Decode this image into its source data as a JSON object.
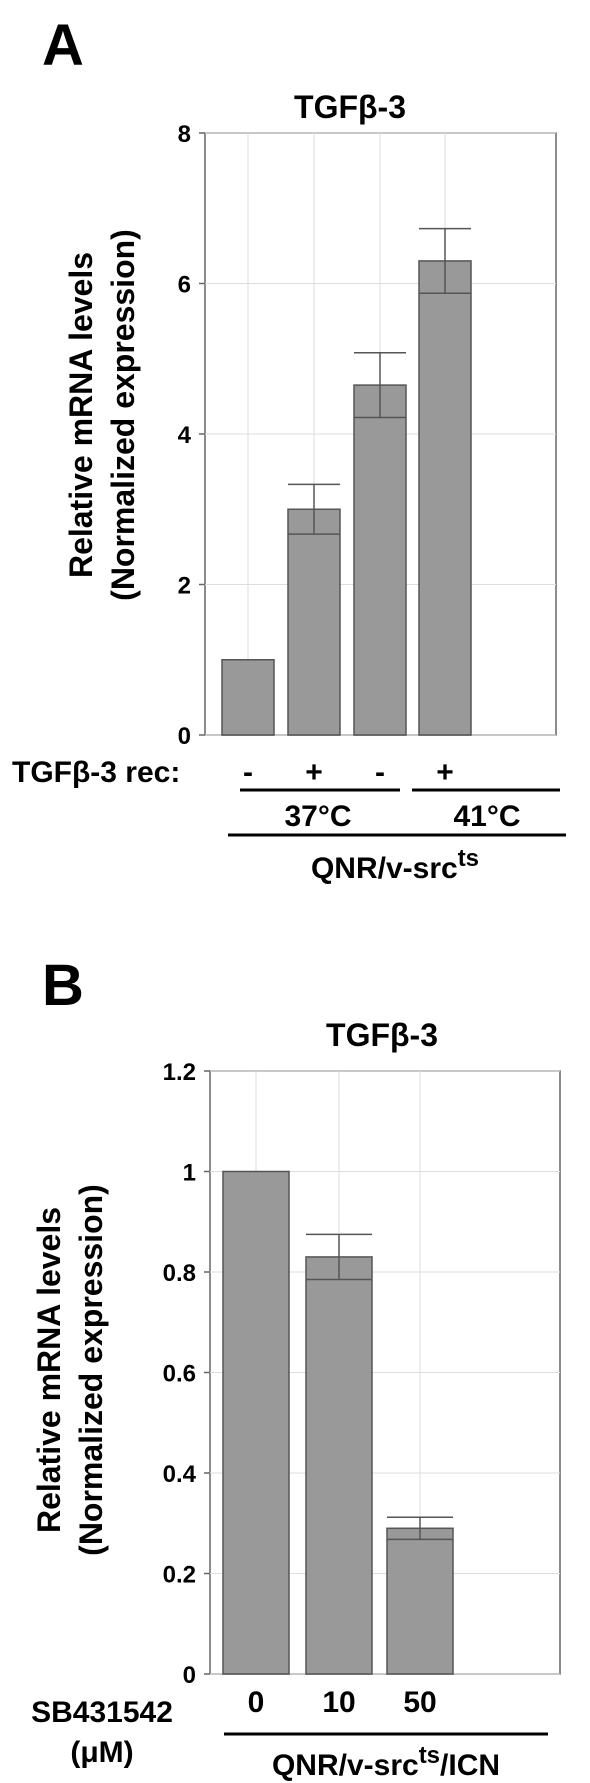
{
  "panels": [
    {
      "letter": "A",
      "treatment_label": "TGFβ-3 rec:",
      "treatment_values": [
        "-",
        "+",
        "-",
        "+"
      ],
      "groups": [
        "37°C",
        "41°C"
      ],
      "cell_line_base": "QNR/v-src",
      "cell_line_sup": "ts",
      "cell_line_suffix": ""
    },
    {
      "letter": "B",
      "treatment_label_line1": "SB431542",
      "treatment_label_line2": "(μM)",
      "cell_line_base": "QNR/v-src",
      "cell_line_sup": "ts",
      "cell_line_suffix": "/ICN"
    }
  ],
  "chart_data": [
    {
      "type": "bar",
      "title": "TGFβ-3",
      "ylabel_line1": "Relative mRNA levels",
      "ylabel_line2": "(Normalized expression)",
      "ylim": [
        0,
        8
      ],
      "yticks": [
        "0",
        "2",
        "4",
        "6",
        "8"
      ],
      "ytick_values": [
        0,
        2,
        4,
        6,
        8
      ],
      "categories": [
        "37°C -",
        "37°C +",
        "41°C -",
        "41°C +"
      ],
      "values": [
        1.0,
        3.0,
        4.65,
        6.3
      ],
      "errors": [
        0.0,
        0.33,
        0.43,
        0.43
      ],
      "grid": true,
      "bar_color": "#999999"
    },
    {
      "type": "bar",
      "title": "TGFβ-3",
      "ylabel_line1": "Relative mRNA levels",
      "ylabel_line2": "(Normalized expression)",
      "ylim": [
        0,
        1.2
      ],
      "yticks": [
        "0",
        "0.2",
        "0.4",
        "0.6",
        "0.8",
        "1",
        "1.2"
      ],
      "ytick_values": [
        0,
        0.2,
        0.4,
        0.6,
        0.8,
        1.0,
        1.2
      ],
      "categories": [
        "0",
        "10",
        "50"
      ],
      "values": [
        1.0,
        0.83,
        0.29
      ],
      "errors": [
        0.0,
        0.045,
        0.022
      ],
      "grid": true,
      "bar_color": "#999999"
    }
  ]
}
